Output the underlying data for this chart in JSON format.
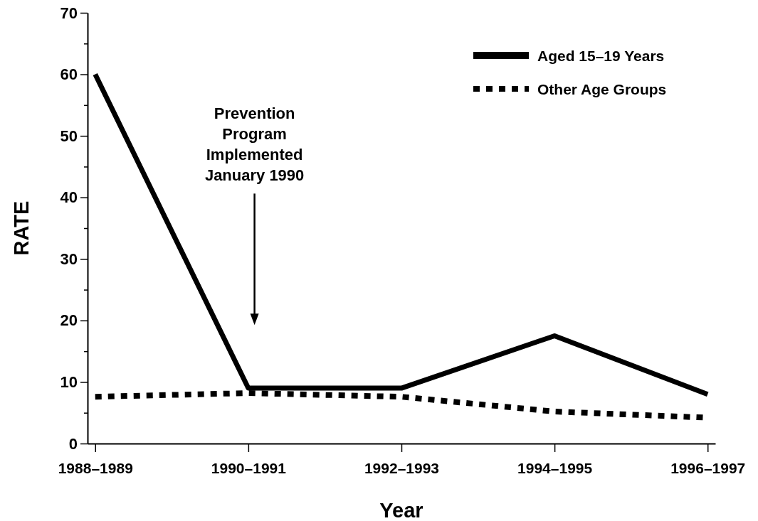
{
  "chart_data": {
    "type": "line",
    "xlabel": "Year",
    "ylabel": "RATE",
    "categories": [
      "1988–1989",
      "1990–1991",
      "1992–1993",
      "1994–1995",
      "1996–1997"
    ],
    "series": [
      {
        "name": "Aged 15–19 Years",
        "color": "#000000",
        "line_style": "solid",
        "values": [
          60,
          9,
          9,
          17.5,
          8
        ]
      },
      {
        "name": "Other Age Groups",
        "color": "#000000",
        "line_style": "dotted",
        "values": [
          7.6,
          8.2,
          7.6,
          5.2,
          4.2
        ]
      }
    ],
    "ylim": [
      0,
      70
    ],
    "yticks": [
      0,
      {
        "value": 5,
        "label": null
      },
      10,
      {
        "value": 15,
        "label": null
      },
      20,
      {
        "value": 25,
        "label": null
      },
      30,
      {
        "value": 35,
        "label": null
      },
      40,
      {
        "value": 45,
        "label": null
      },
      50,
      {
        "value": 55,
        "label": null
      },
      60,
      {
        "value": 65,
        "label": null
      },
      70
    ],
    "annotations": [
      "Prevention\nProgram\nImplemented\nJanuary 1990"
    ],
    "legend": "top right",
    "grid": false,
    "marker": "none"
  }
}
